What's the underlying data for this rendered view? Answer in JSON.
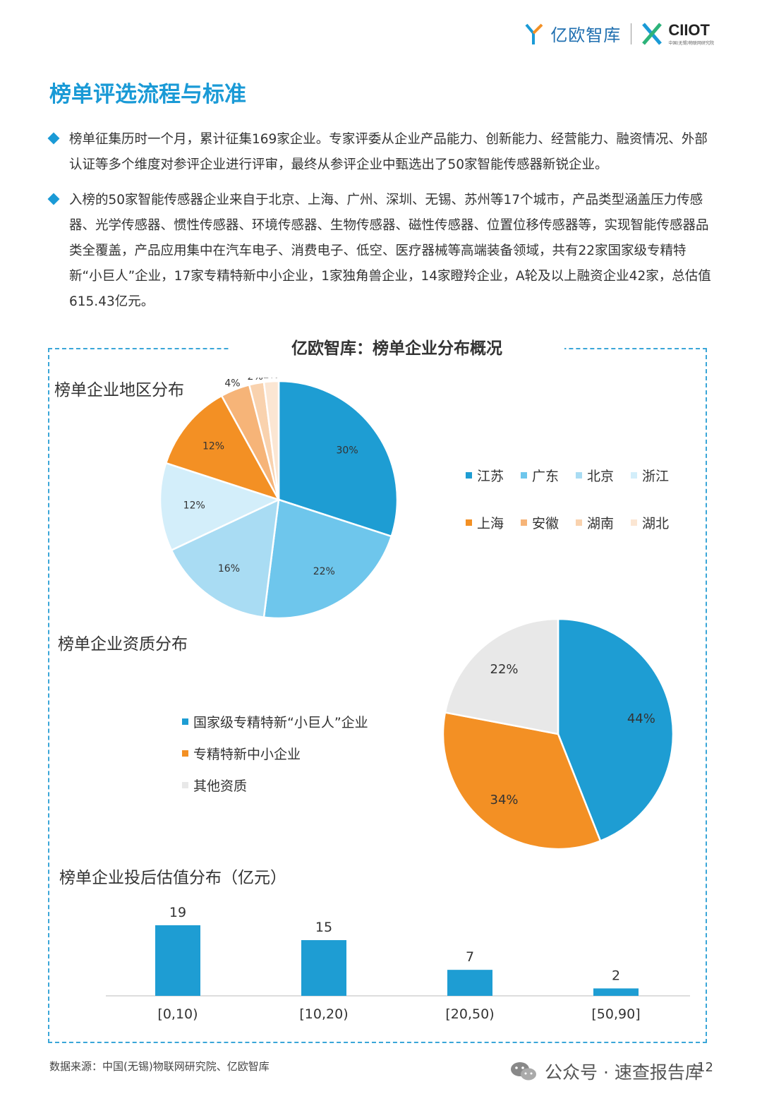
{
  "header": {
    "brand": "亿欧智库",
    "partner": "CIIOT",
    "partner_sub": "中国(无锡)物联网研究院"
  },
  "title": "榜单评选流程与标准",
  "bullets": [
    "榜单征集历时一个月，累计征集169家企业。专家评委从企业产品能力、创新能力、经营能力、融资情况、外部认证等多个维度对参评企业进行评审，最终从参评企业中甄选出了50家智能传感器新锐企业。",
    "入榜的50家智能传感器企业来自于北京、上海、广州、深圳、无锡、苏州等17个城市，产品类型涵盖压力传感器、光学传感器、惯性传感器、环境传感器、生物传感器、磁性传感器、位置位移传感器等，实现智能传感器品类全覆盖，产品应用集中在汽车电子、消费电子、低空、医疗器械等高端装备领域，共有22家国家级专精特新“小巨人”企业，17家专精特新中小企业，1家独角兽企业，14家瞪羚企业，A轮及以上融资企业42家，总估值615.43亿元。"
  ],
  "panel_title": "亿欧智库：榜单企业分布概况",
  "colors": {
    "江苏": "#1e9dd3",
    "广东": "#6ec6ec",
    "北京": "#a9dcf3",
    "浙江": "#d3eefa",
    "上海": "#f39024",
    "安徽": "#f6b478",
    "湖南": "#f9d2ae",
    "湖北": "#fbe6d3",
    "国家级": "#1e9dd3",
    "专精特新": "#f39024",
    "其他": "#e8e8e8",
    "bar": "#1e9dd3"
  },
  "chart_data": [
    {
      "type": "pie",
      "title": "榜单企业地区分布",
      "series": [
        {
          "name": "江苏",
          "value": 30,
          "label": "30%"
        },
        {
          "name": "广东",
          "value": 22,
          "label": "22%"
        },
        {
          "name": "北京",
          "value": 16,
          "label": "16%"
        },
        {
          "name": "浙江",
          "value": 12,
          "label": "12%"
        },
        {
          "name": "上海",
          "value": 12,
          "label": "12%"
        },
        {
          "name": "安徽",
          "value": 4,
          "label": "4%"
        },
        {
          "name": "湖南",
          "value": 2,
          "label": "2%"
        },
        {
          "name": "湖北",
          "value": 2,
          "label": "2%"
        }
      ],
      "legend": [
        "江苏",
        "广东",
        "北京",
        "浙江",
        "上海",
        "安徽",
        "湖南",
        "湖北"
      ]
    },
    {
      "type": "pie",
      "title": "榜单企业资质分布",
      "series": [
        {
          "name": "国家级专精特新“小巨人”企业",
          "value": 44,
          "label": "44%"
        },
        {
          "name": "专精特新中小企业",
          "value": 34,
          "label": "34%"
        },
        {
          "name": "其他资质",
          "value": 22,
          "label": "22%"
        }
      ]
    },
    {
      "type": "bar",
      "title": "榜单企业投后估值分布（亿元）",
      "categories": [
        "[0,10)",
        "[10,20)",
        "[20,50)",
        "[50,90]"
      ],
      "values": [
        19,
        15,
        7,
        2
      ]
    }
  ],
  "footer": {
    "source": "数据来源：中国(无锡)物联网研究院、亿欧智库",
    "wechat": "公众号 · 速查报告库",
    "page": "12"
  }
}
